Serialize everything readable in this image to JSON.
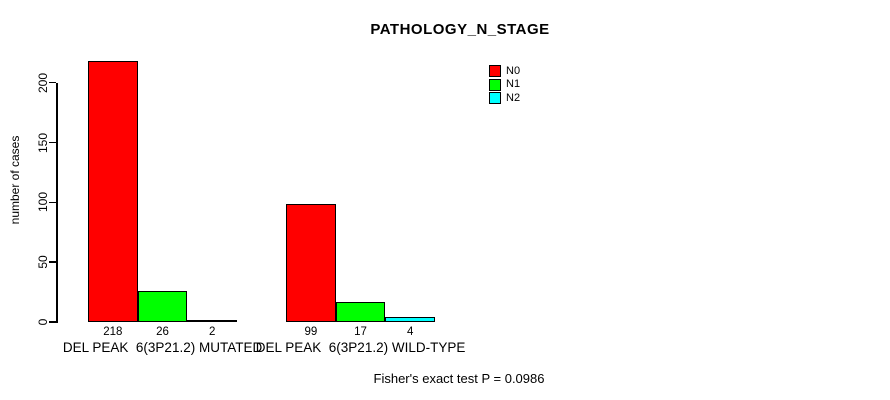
{
  "chart_data": {
    "type": "bar",
    "title": "PATHOLOGY_N_STAGE",
    "ylabel": "number of cases",
    "ylim": [
      0,
      200
    ],
    "yticks": [
      0,
      50,
      100,
      150,
      200
    ],
    "grid": false,
    "legend_position": "top-right",
    "series": [
      {
        "name": "N0",
        "color": "#ff0000"
      },
      {
        "name": "N1",
        "color": "#00ff00"
      },
      {
        "name": "N2",
        "color": "#00ffff"
      }
    ],
    "groups": [
      {
        "label": "DEL PEAK  6(3P21.2) MUTATED",
        "values": [
          218,
          26,
          2
        ]
      },
      {
        "label": "DEL PEAK  6(3P21.2) WILD-TYPE",
        "values": [
          99,
          17,
          4
        ]
      }
    ],
    "annotation": "Fisher's exact test P = 0.0986"
  }
}
